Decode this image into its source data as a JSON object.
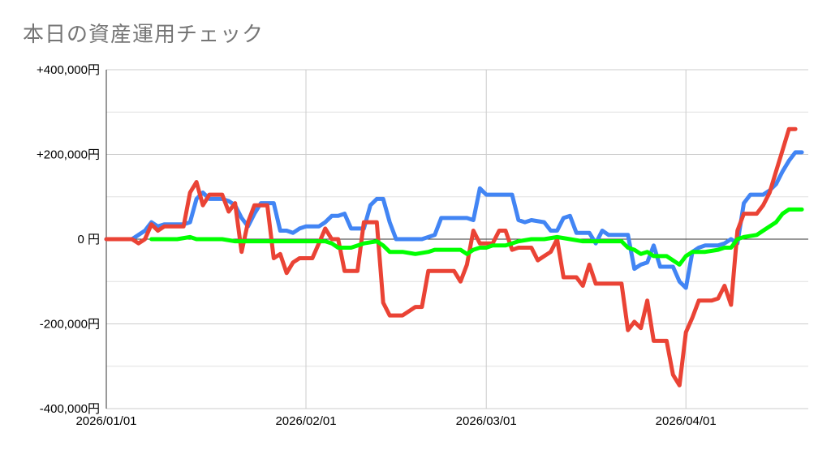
{
  "title": "本日の資産運用チェック",
  "chart_data": {
    "type": "line",
    "title": "本日の資産運用チェック",
    "xlabel": "",
    "ylabel": "",
    "x_range": [
      "2026-01-01",
      "2026-04-20"
    ],
    "ylim": [
      -400000,
      400000
    ],
    "y_ticks": [
      {
        "value": 400000,
        "label": "+400,000円"
      },
      {
        "value": 200000,
        "label": "+200,000円"
      },
      {
        "value": 0,
        "label": "0 円"
      },
      {
        "value": -200000,
        "label": "-200,000円"
      },
      {
        "value": -400000,
        "label": "-400,000円"
      }
    ],
    "x_ticks": [
      {
        "date": "2026-01-01",
        "label": "2026/01/01"
      },
      {
        "date": "2026-02-01",
        "label": "2026/02/01"
      },
      {
        "date": "2026-03-01",
        "label": "2026/03/01"
      },
      {
        "date": "2026-04-01",
        "label": "2026/04/01"
      }
    ],
    "grid": true,
    "legend": "none",
    "series": [
      {
        "color": "#4285f4",
        "points": [
          [
            "2026-01-01",
            0
          ],
          [
            "2026-01-05",
            0
          ],
          [
            "2026-01-07",
            20000
          ],
          [
            "2026-01-08",
            40000
          ],
          [
            "2026-01-09",
            30000
          ],
          [
            "2026-01-10",
            35000
          ],
          [
            "2026-01-12",
            35000
          ],
          [
            "2026-01-13",
            35000
          ],
          [
            "2026-01-14",
            40000
          ],
          [
            "2026-01-15",
            95000
          ],
          [
            "2026-01-16",
            110000
          ],
          [
            "2026-01-17",
            95000
          ],
          [
            "2026-01-18",
            95000
          ],
          [
            "2026-01-19",
            95000
          ],
          [
            "2026-01-20",
            90000
          ],
          [
            "2026-01-21",
            80000
          ],
          [
            "2026-01-22",
            50000
          ],
          [
            "2026-01-23",
            30000
          ],
          [
            "2026-01-24",
            60000
          ],
          [
            "2026-01-25",
            85000
          ],
          [
            "2026-01-26",
            85000
          ],
          [
            "2026-01-27",
            85000
          ],
          [
            "2026-01-28",
            20000
          ],
          [
            "2026-01-29",
            20000
          ],
          [
            "2026-01-30",
            15000
          ],
          [
            "2026-01-31",
            25000
          ],
          [
            "2026-02-01",
            30000
          ],
          [
            "2026-02-03",
            30000
          ],
          [
            "2026-02-04",
            40000
          ],
          [
            "2026-02-05",
            55000
          ],
          [
            "2026-02-06",
            55000
          ],
          [
            "2026-02-07",
            60000
          ],
          [
            "2026-02-08",
            25000
          ],
          [
            "2026-02-09",
            25000
          ],
          [
            "2026-02-10",
            25000
          ],
          [
            "2026-02-11",
            80000
          ],
          [
            "2026-02-12",
            95000
          ],
          [
            "2026-02-13",
            95000
          ],
          [
            "2026-02-14",
            40000
          ],
          [
            "2026-02-15",
            0
          ],
          [
            "2026-02-17",
            0
          ],
          [
            "2026-02-19",
            0
          ],
          [
            "2026-02-20",
            5000
          ],
          [
            "2026-02-21",
            10000
          ],
          [
            "2026-02-22",
            50000
          ],
          [
            "2026-02-24",
            50000
          ],
          [
            "2026-02-26",
            50000
          ],
          [
            "2026-02-27",
            45000
          ],
          [
            "2026-02-28",
            120000
          ],
          [
            "2026-03-01",
            105000
          ],
          [
            "2026-03-03",
            105000
          ],
          [
            "2026-03-05",
            105000
          ],
          [
            "2026-03-06",
            45000
          ],
          [
            "2026-03-07",
            40000
          ],
          [
            "2026-03-08",
            45000
          ],
          [
            "2026-03-10",
            40000
          ],
          [
            "2026-03-11",
            20000
          ],
          [
            "2026-03-12",
            20000
          ],
          [
            "2026-03-13",
            50000
          ],
          [
            "2026-03-14",
            55000
          ],
          [
            "2026-03-15",
            15000
          ],
          [
            "2026-03-16",
            15000
          ],
          [
            "2026-03-17",
            15000
          ],
          [
            "2026-03-18",
            -10000
          ],
          [
            "2026-03-19",
            20000
          ],
          [
            "2026-03-20",
            10000
          ],
          [
            "2026-03-23",
            10000
          ],
          [
            "2026-03-24",
            -70000
          ],
          [
            "2026-03-25",
            -60000
          ],
          [
            "2026-03-26",
            -55000
          ],
          [
            "2026-03-27",
            -15000
          ],
          [
            "2026-03-28",
            -65000
          ],
          [
            "2026-03-30",
            -65000
          ],
          [
            "2026-03-31",
            -100000
          ],
          [
            "2026-04-01",
            -115000
          ],
          [
            "2026-04-02",
            -30000
          ],
          [
            "2026-04-03",
            -20000
          ],
          [
            "2026-04-04",
            -15000
          ],
          [
            "2026-04-06",
            -15000
          ],
          [
            "2026-04-07",
            -10000
          ],
          [
            "2026-04-08",
            0
          ],
          [
            "2026-04-09",
            -10000
          ],
          [
            "2026-04-10",
            85000
          ],
          [
            "2026-04-11",
            105000
          ],
          [
            "2026-04-13",
            105000
          ],
          [
            "2026-04-14",
            115000
          ],
          [
            "2026-04-15",
            130000
          ],
          [
            "2026-04-16",
            160000
          ],
          [
            "2026-04-17",
            185000
          ],
          [
            "2026-04-18",
            205000
          ],
          [
            "2026-04-19",
            205000
          ]
        ]
      },
      {
        "color": "#ea4335",
        "points": [
          [
            "2026-01-01",
            0
          ],
          [
            "2026-01-05",
            0
          ],
          [
            "2026-01-06",
            -10000
          ],
          [
            "2026-01-07",
            0
          ],
          [
            "2026-01-08",
            35000
          ],
          [
            "2026-01-09",
            20000
          ],
          [
            "2026-01-10",
            30000
          ],
          [
            "2026-01-12",
            30000
          ],
          [
            "2026-01-13",
            30000
          ],
          [
            "2026-01-14",
            110000
          ],
          [
            "2026-01-15",
            135000
          ],
          [
            "2026-01-16",
            80000
          ],
          [
            "2026-01-17",
            105000
          ],
          [
            "2026-01-19",
            105000
          ],
          [
            "2026-01-20",
            65000
          ],
          [
            "2026-01-21",
            85000
          ],
          [
            "2026-01-22",
            -30000
          ],
          [
            "2026-01-23",
            40000
          ],
          [
            "2026-01-24",
            80000
          ],
          [
            "2026-01-26",
            80000
          ],
          [
            "2026-01-27",
            -45000
          ],
          [
            "2026-01-28",
            -35000
          ],
          [
            "2026-01-29",
            -80000
          ],
          [
            "2026-01-30",
            -55000
          ],
          [
            "2026-01-31",
            -45000
          ],
          [
            "2026-02-01",
            -45000
          ],
          [
            "2026-02-02",
            -45000
          ],
          [
            "2026-02-03",
            -10000
          ],
          [
            "2026-02-04",
            25000
          ],
          [
            "2026-02-05",
            0
          ],
          [
            "2026-02-06",
            0
          ],
          [
            "2026-02-07",
            -75000
          ],
          [
            "2026-02-09",
            -75000
          ],
          [
            "2026-02-10",
            40000
          ],
          [
            "2026-02-12",
            40000
          ],
          [
            "2026-02-13",
            -150000
          ],
          [
            "2026-02-14",
            -180000
          ],
          [
            "2026-02-16",
            -180000
          ],
          [
            "2026-02-17",
            -170000
          ],
          [
            "2026-02-18",
            -160000
          ],
          [
            "2026-02-19",
            -160000
          ],
          [
            "2026-02-20",
            -75000
          ],
          [
            "2026-02-22",
            -75000
          ],
          [
            "2026-02-24",
            -75000
          ],
          [
            "2026-02-25",
            -100000
          ],
          [
            "2026-02-26",
            -60000
          ],
          [
            "2026-02-27",
            20000
          ],
          [
            "2026-02-28",
            -10000
          ],
          [
            "2026-03-01",
            -10000
          ],
          [
            "2026-03-02",
            -10000
          ],
          [
            "2026-03-03",
            20000
          ],
          [
            "2026-03-04",
            20000
          ],
          [
            "2026-03-05",
            -25000
          ],
          [
            "2026-03-06",
            -20000
          ],
          [
            "2026-03-08",
            -20000
          ],
          [
            "2026-03-09",
            -50000
          ],
          [
            "2026-03-10",
            -40000
          ],
          [
            "2026-03-11",
            -30000
          ],
          [
            "2026-03-12",
            0
          ],
          [
            "2026-03-13",
            -90000
          ],
          [
            "2026-03-14",
            -90000
          ],
          [
            "2026-03-15",
            -90000
          ],
          [
            "2026-03-16",
            -110000
          ],
          [
            "2026-03-17",
            -60000
          ],
          [
            "2026-03-18",
            -105000
          ],
          [
            "2026-03-20",
            -105000
          ],
          [
            "2026-03-22",
            -105000
          ],
          [
            "2026-03-23",
            -215000
          ],
          [
            "2026-03-24",
            -195000
          ],
          [
            "2026-03-25",
            -210000
          ],
          [
            "2026-03-26",
            -145000
          ],
          [
            "2026-03-27",
            -240000
          ],
          [
            "2026-03-28",
            -240000
          ],
          [
            "2026-03-29",
            -240000
          ],
          [
            "2026-03-30",
            -320000
          ],
          [
            "2026-03-31",
            -345000
          ],
          [
            "2026-04-01",
            -220000
          ],
          [
            "2026-04-02",
            -185000
          ],
          [
            "2026-04-03",
            -145000
          ],
          [
            "2026-04-04",
            -145000
          ],
          [
            "2026-04-05",
            -145000
          ],
          [
            "2026-04-06",
            -140000
          ],
          [
            "2026-04-07",
            -110000
          ],
          [
            "2026-04-08",
            -155000
          ],
          [
            "2026-04-09",
            20000
          ],
          [
            "2026-04-10",
            60000
          ],
          [
            "2026-04-12",
            60000
          ],
          [
            "2026-04-13",
            80000
          ],
          [
            "2026-04-14",
            110000
          ],
          [
            "2026-04-15",
            160000
          ],
          [
            "2026-04-16",
            210000
          ],
          [
            "2026-04-17",
            260000
          ],
          [
            "2026-04-18",
            260000
          ]
        ]
      },
      {
        "color": "#00ff00",
        "points": [
          [
            "2026-01-08",
            0
          ],
          [
            "2026-01-10",
            0
          ],
          [
            "2026-01-12",
            0
          ],
          [
            "2026-01-14",
            5000
          ],
          [
            "2026-01-15",
            0
          ],
          [
            "2026-01-17",
            0
          ],
          [
            "2026-01-19",
            0
          ],
          [
            "2026-01-21",
            -5000
          ],
          [
            "2026-01-23",
            -5000
          ],
          [
            "2026-01-25",
            -5000
          ],
          [
            "2026-01-27",
            -5000
          ],
          [
            "2026-01-29",
            -5000
          ],
          [
            "2026-01-31",
            -5000
          ],
          [
            "2026-02-02",
            -5000
          ],
          [
            "2026-02-04",
            -5000
          ],
          [
            "2026-02-05",
            -10000
          ],
          [
            "2026-02-06",
            -20000
          ],
          [
            "2026-02-08",
            -20000
          ],
          [
            "2026-02-10",
            -10000
          ],
          [
            "2026-02-12",
            -5000
          ],
          [
            "2026-02-13",
            -15000
          ],
          [
            "2026-02-14",
            -30000
          ],
          [
            "2026-02-16",
            -30000
          ],
          [
            "2026-02-18",
            -35000
          ],
          [
            "2026-02-20",
            -30000
          ],
          [
            "2026-02-21",
            -25000
          ],
          [
            "2026-02-23",
            -25000
          ],
          [
            "2026-02-25",
            -25000
          ],
          [
            "2026-02-26",
            -35000
          ],
          [
            "2026-02-27",
            -25000
          ],
          [
            "2026-02-28",
            -20000
          ],
          [
            "2026-03-01",
            -20000
          ],
          [
            "2026-03-02",
            -15000
          ],
          [
            "2026-03-04",
            -15000
          ],
          [
            "2026-03-05",
            -10000
          ],
          [
            "2026-03-06",
            -5000
          ],
          [
            "2026-03-08",
            0
          ],
          [
            "2026-03-10",
            0
          ],
          [
            "2026-03-12",
            5000
          ],
          [
            "2026-03-14",
            0
          ],
          [
            "2026-03-16",
            -5000
          ],
          [
            "2026-03-18",
            -5000
          ],
          [
            "2026-03-20",
            -5000
          ],
          [
            "2026-03-22",
            -5000
          ],
          [
            "2026-03-23",
            -20000
          ],
          [
            "2026-03-24",
            -25000
          ],
          [
            "2026-03-25",
            -35000
          ],
          [
            "2026-03-26",
            -30000
          ],
          [
            "2026-03-27",
            -40000
          ],
          [
            "2026-03-29",
            -40000
          ],
          [
            "2026-03-30",
            -50000
          ],
          [
            "2026-03-31",
            -60000
          ],
          [
            "2026-04-01",
            -40000
          ],
          [
            "2026-04-02",
            -30000
          ],
          [
            "2026-04-04",
            -30000
          ],
          [
            "2026-04-06",
            -25000
          ],
          [
            "2026-04-07",
            -20000
          ],
          [
            "2026-04-08",
            -20000
          ],
          [
            "2026-04-09",
            0
          ],
          [
            "2026-04-10",
            5000
          ],
          [
            "2026-04-12",
            10000
          ],
          [
            "2026-04-13",
            20000
          ],
          [
            "2026-04-15",
            40000
          ],
          [
            "2026-04-16",
            60000
          ],
          [
            "2026-04-17",
            70000
          ],
          [
            "2026-04-19",
            70000
          ]
        ]
      }
    ]
  }
}
